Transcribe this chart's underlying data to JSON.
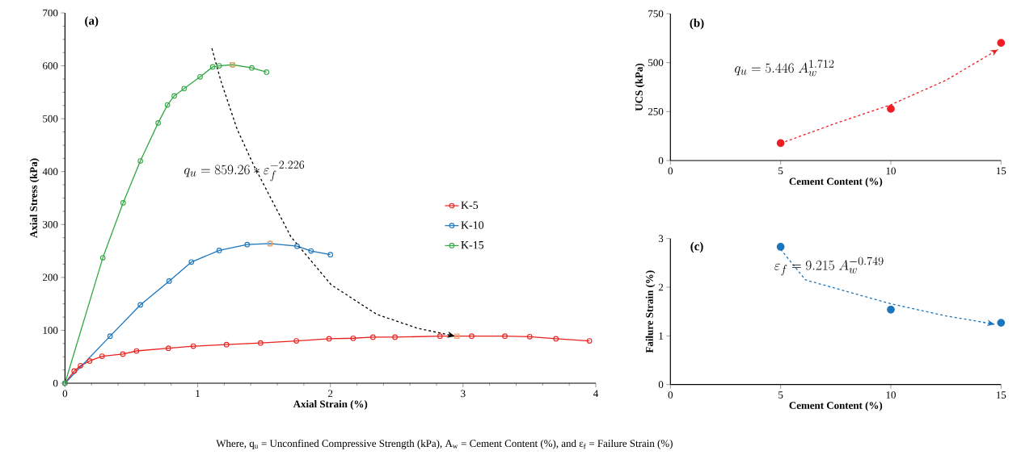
{
  "chart_data": [
    {
      "type": "line",
      "xlabel": "Axial Strain (%)",
      "ylabel": "Axial Stress (kPa)",
      "xlim": [
        0,
        4
      ],
      "ylim": [
        0,
        700
      ],
      "xticks": [
        0,
        1,
        2,
        3,
        4
      ],
      "yticks": [
        0,
        100,
        200,
        300,
        400,
        500,
        600,
        700
      ],
      "grid": false,
      "legend": "right",
      "marker": "circle",
      "annotations": [
        "(a)",
        "q_u = 859.26 * \\varepsilon_f^{-2.226}",
        "Where, q$_{u}$ = Unconfined Compressive Strength (kPa), A$_{w}$ = Cement Content (%), and ε$_{f}$ = Failure Strain (%)"
      ],
      "series": [
        {
          "name": "K-5",
          "color": "#e8211f",
          "x": [
            0,
            0.069,
            0.117,
            0.186,
            0.279,
            0.436,
            0.539,
            0.779,
            0.967,
            1.217,
            1.474,
            1.744,
            1.99,
            2.172,
            2.321,
            2.487,
            2.826,
            3.065,
            3.315,
            3.502,
            3.7,
            3.952
          ],
          "values": [
            0,
            23,
            33,
            42,
            51,
            55,
            61,
            66,
            70,
            73,
            76,
            80,
            84,
            85,
            87,
            87,
            89,
            89,
            89,
            88,
            84,
            80
          ]
        },
        {
          "name": "K-10",
          "color": "#1b75bc",
          "x": [
            0,
            0.34,
            0.568,
            0.785,
            0.953,
            1.162,
            1.373,
            1.545,
            1.749,
            1.854,
            2.0
          ],
          "values": [
            0,
            89,
            148,
            193,
            229,
            251,
            262,
            264,
            259,
            250,
            243
          ]
        },
        {
          "name": "K-15",
          "color": "#33a845",
          "x": [
            0,
            0.285,
            0.438,
            0.568,
            0.702,
            0.772,
            0.823,
            0.898,
            1.018,
            1.113,
            1.162,
            1.262,
            1.408,
            1.519
          ],
          "values": [
            0,
            237,
            341,
            420,
            492,
            526,
            543,
            557,
            579,
            598,
            600,
            602,
            596,
            588
          ]
        },
        {
          "type": "scatter",
          "marker": "square",
          "color": "#f4a36b",
          "x": [
            1.262,
            1.545,
            2.954
          ],
          "values": [
            602,
            264,
            89
          ]
        },
        {
          "type": "line",
          "marker": "none",
          "line_style": "dashed",
          "color": "#000000",
          "x": [
            1.107,
            1.174,
            1.296,
            1.418,
            1.702,
            2.006,
            2.351,
            2.656,
            2.937
          ],
          "values": [
            633,
            572,
            481,
            414,
            277,
            186,
            130,
            104,
            89
          ]
        }
      ]
    },
    {
      "type": "scatter",
      "xlabel": "Cement Content (%)",
      "ylabel": "UCS (kPa)",
      "xlim": [
        0,
        15
      ],
      "ylim": [
        0,
        750
      ],
      "xticks": [
        0,
        5,
        10,
        15
      ],
      "yticks": [
        0,
        250,
        500,
        750
      ],
      "grid": false,
      "marker": "circle",
      "annotations": [
        "(b)",
        "q_u = 5.446\\ A_w^{1.712}"
      ],
      "series": [
        {
          "color": "#ee1c24",
          "x": [
            5,
            10,
            15
          ],
          "values": [
            89,
            264,
            601
          ]
        },
        {
          "type": "line",
          "marker": "none",
          "line_style": "dashed",
          "color": "#ee1c24",
          "x": [
            5,
            7.5,
            10,
            12.5,
            14.86
          ],
          "values": [
            88,
            190,
            285,
            410,
            567
          ]
        }
      ]
    },
    {
      "type": "scatter",
      "xlabel": "Cement Content (%)",
      "ylabel": "Failure Strain (%)",
      "xlim": [
        0,
        15
      ],
      "ylim": [
        0,
        3
      ],
      "xticks": [
        0,
        5,
        10,
        15
      ],
      "yticks": [
        0,
        1,
        2,
        3
      ],
      "grid": false,
      "marker": "circle",
      "annotations": [
        "(c)",
        "\\varepsilon_f = 9.215\\ A_w^{-0.749}"
      ],
      "series": [
        {
          "color": "#1b75bc",
          "x": [
            5,
            10,
            15
          ],
          "values": [
            2.83,
            1.54,
            1.27
          ]
        },
        {
          "type": "line",
          "marker": "none",
          "line_style": "dashed",
          "color": "#1b75bc",
          "x": [
            5,
            6.13,
            10,
            12.5,
            14.7
          ],
          "values": [
            2.78,
            2.15,
            1.66,
            1.41,
            1.24
          ]
        }
      ]
    }
  ]
}
